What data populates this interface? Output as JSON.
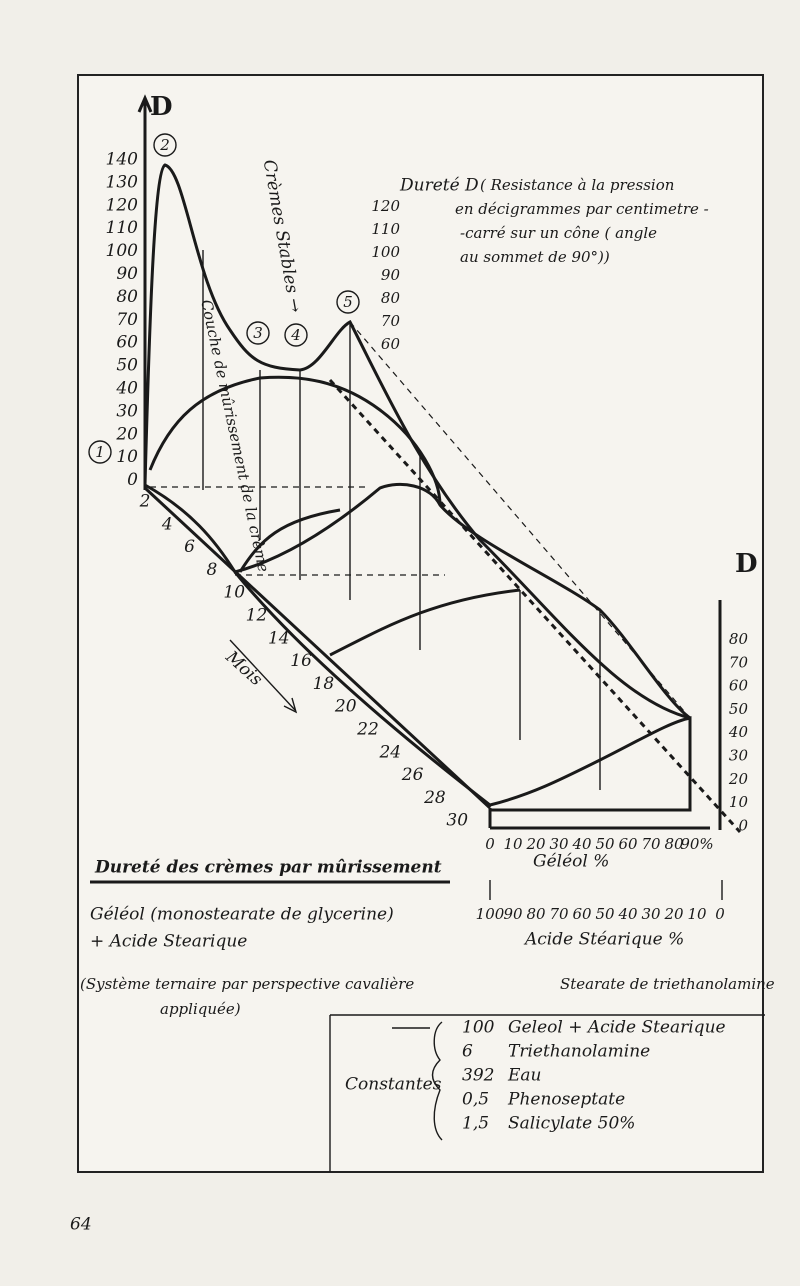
{
  "page_number": "64",
  "left_axis": {
    "label": "D",
    "ticks": [
      "140",
      "130",
      "120",
      "110",
      "100",
      "90",
      "80",
      "70",
      "60",
      "50",
      "40",
      "30",
      "20",
      "10",
      "0"
    ]
  },
  "circle_labels": [
    "1",
    "2",
    "3",
    "4",
    "5"
  ],
  "annotations": {
    "cremes_stables": "Crèmes Stables →",
    "couche": "Couche de mûrissement de la crème",
    "mois": "Mois"
  },
  "months": [
    "2",
    "4",
    "6",
    "8",
    "10",
    "12",
    "14",
    "16",
    "18",
    "20",
    "22",
    "24",
    "26",
    "28",
    "30"
  ],
  "durete_box": {
    "label": "Dureté D",
    "desc": [
      "( Resistance à la pression",
      "en décigrammes par centimetre -",
      "-carré sur un cône ( angle",
      "au sommet de 90°))"
    ]
  },
  "inner_ticks": [
    "120",
    "110",
    "100",
    "90",
    "80",
    "70",
    "60"
  ],
  "right_axis": {
    "label": "D",
    "ticks": [
      "80",
      "70",
      "60",
      "50",
      "40",
      "30",
      "20",
      "10",
      "0"
    ]
  },
  "geleol_ticks": [
    "0",
    "10",
    "20",
    "30",
    "40",
    "50",
    "60",
    "70",
    "80",
    "90%"
  ],
  "geleol_label": "Géléol %",
  "acide_ticks": [
    "100",
    "90",
    "80",
    "70",
    "60",
    "50",
    "40",
    "30",
    "20",
    "10",
    "0"
  ],
  "acide_label": "Acide Stéarique %",
  "title": "Dureté des crèmes par mûrissement",
  "composition": [
    "Géléol (monostearate de glycerine)",
    "+ Acide Stearique"
  ],
  "system_note": [
    "(Système ternaire par perspective cavalière",
    "appliquée)"
  ],
  "stearate": "Stearate de triethanolamine",
  "constants_label": "Constantes",
  "constants": [
    [
      "100",
      "Geleol + Acide Stearique"
    ],
    [
      "6",
      "Triethanolamine"
    ],
    [
      "392",
      "Eau"
    ],
    [
      "0,5",
      "Phenoseptate"
    ],
    [
      "1,5",
      "Salicylate 50%"
    ]
  ]
}
